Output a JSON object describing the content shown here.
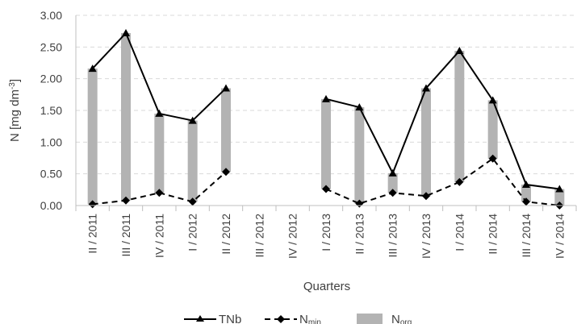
{
  "chart_data": {
    "type": "line",
    "xlabel": "Quarters",
    "ylabel": {
      "main": "N [mg dm",
      "sup": "-3",
      "end": "]"
    },
    "ylim": [
      0,
      3.0
    ],
    "yticks": [
      "0.00",
      "0.50",
      "1.00",
      "1.50",
      "2.00",
      "2.50",
      "3.00"
    ],
    "grid": true,
    "legend_placement": "bottom",
    "categories": [
      "II / 2011",
      "III / 2011",
      "IV / 2011",
      "I / 2012",
      "II / 2012",
      "III / 2012",
      "IV / 2012",
      "I / 2013",
      "II / 2013",
      "III / 2013",
      "IV / 2013",
      "I / 2014",
      "II / 2014",
      "III / 2014",
      "IV / 2014"
    ],
    "series": [
      {
        "name": "TNb",
        "legend_label": "TNb",
        "values": [
          2.16,
          2.72,
          1.45,
          1.34,
          1.85,
          null,
          null,
          1.68,
          1.55,
          0.51,
          1.85,
          2.44,
          1.66,
          0.33,
          0.26
        ],
        "color": "#000000",
        "marker": "triangle",
        "line": "solid"
      },
      {
        "name": "Nmin",
        "legend_label": "N",
        "legend_sub": "min",
        "values": [
          0.02,
          0.08,
          0.2,
          0.06,
          0.53,
          null,
          null,
          0.26,
          0.03,
          0.2,
          0.15,
          0.37,
          0.74,
          0.06,
          0.0
        ],
        "color": "#000000",
        "marker": "diamond",
        "line": "dashed"
      },
      {
        "name": "Norg",
        "legend_label": "N",
        "legend_sub": "org",
        "values": [
          2.14,
          2.64,
          1.25,
          1.28,
          1.32,
          null,
          null,
          1.42,
          1.52,
          0.31,
          1.7,
          2.07,
          0.92,
          0.27,
          0.26
        ],
        "color": "#b3b3b3",
        "type": "bar",
        "note": "drawn as a gray bar spanning from Nmin to TNb"
      }
    ]
  }
}
